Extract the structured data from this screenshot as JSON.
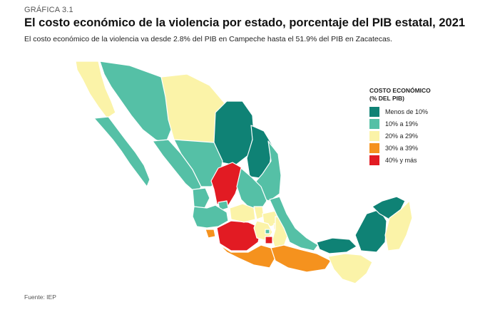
{
  "header": {
    "label": "GRÁFICA 3.1",
    "title": "El costo económico de la violencia por estado, porcentaje del PIB estatal, 2021",
    "subtitle": "El costo económico de la violencia va desde 2.8% del PIB en Campeche hasta el 51.9% del PIB en Zacatecas."
  },
  "legend": {
    "title_line1": "COSTO ECONÓMICO",
    "title_line2": "(% DEL PIB)",
    "items": [
      {
        "label": "Menos de 10%",
        "color": "#0f8275"
      },
      {
        "label": "10% a 19%",
        "color": "#55c0a6"
      },
      {
        "label": "20% a 29%",
        "color": "#fbf3a8"
      },
      {
        "label": "30% a 39%",
        "color": "#f5921e"
      },
      {
        "label": "40% y más",
        "color": "#e21b23"
      }
    ]
  },
  "footer": {
    "source": "Fuente: IEP"
  },
  "map_colors": {
    "menos_10": "#0f8275",
    "r10_19": "#55c0a6",
    "r20_29": "#fbf3a8",
    "r30_39": "#f5921e",
    "r40_mas": "#e21b23"
  }
}
